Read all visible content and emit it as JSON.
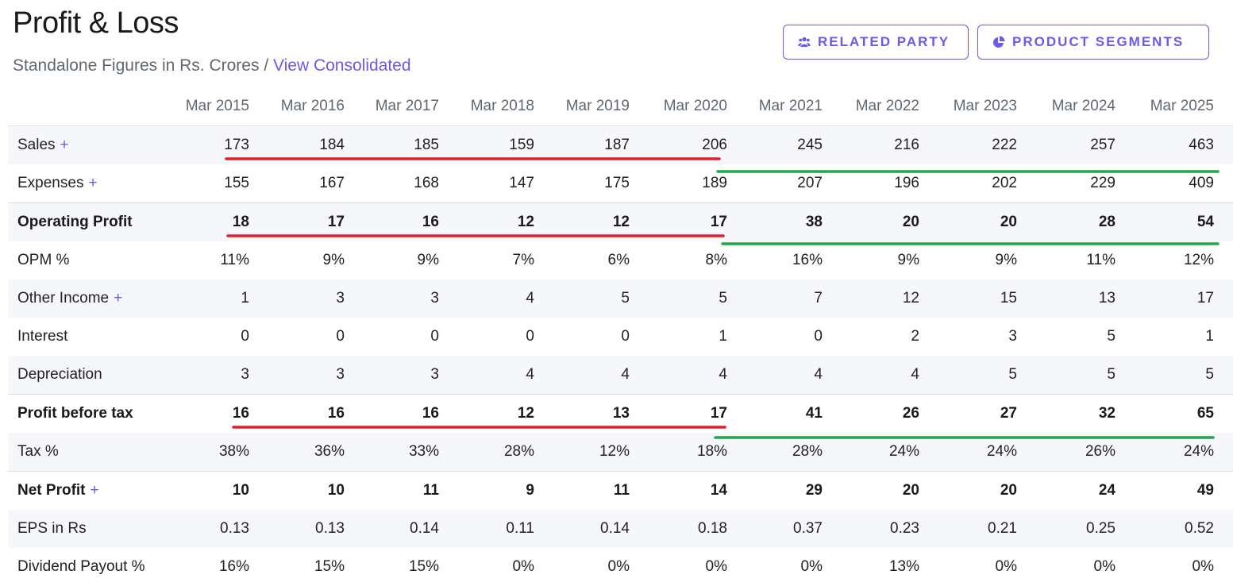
{
  "header": {
    "title": "Profit & Loss",
    "subtitle_prefix": "Standalone Figures in Rs. Crores / ",
    "subtitle_link": "View Consolidated"
  },
  "buttons": {
    "related_party": "RELATED PARTY",
    "product_segments": "PRODUCT SEGMENTS"
  },
  "table": {
    "columns": [
      "Mar 2015",
      "Mar 2016",
      "Mar 2017",
      "Mar 2018",
      "Mar 2019",
      "Mar 2020",
      "Mar 2021",
      "Mar 2022",
      "Mar 2023",
      "Mar 2024",
      "Mar 2025"
    ],
    "rows": [
      {
        "label": "Sales",
        "plus": true,
        "bold": false,
        "values": [
          "173",
          "184",
          "185",
          "159",
          "187",
          "206",
          "245",
          "216",
          "222",
          "257",
          "463"
        ]
      },
      {
        "label": "Expenses",
        "plus": true,
        "bold": false,
        "values": [
          "155",
          "167",
          "168",
          "147",
          "175",
          "189",
          "207",
          "196",
          "202",
          "229",
          "409"
        ]
      },
      {
        "label": "Operating Profit",
        "plus": false,
        "bold": true,
        "values": [
          "18",
          "17",
          "16",
          "12",
          "12",
          "17",
          "38",
          "20",
          "20",
          "28",
          "54"
        ]
      },
      {
        "label": "OPM %",
        "plus": false,
        "bold": false,
        "values": [
          "11%",
          "9%",
          "9%",
          "7%",
          "6%",
          "8%",
          "16%",
          "9%",
          "9%",
          "11%",
          "12%"
        ]
      },
      {
        "label": "Other Income",
        "plus": true,
        "bold": false,
        "values": [
          "1",
          "3",
          "3",
          "4",
          "5",
          "5",
          "7",
          "12",
          "15",
          "13",
          "17"
        ]
      },
      {
        "label": "Interest",
        "plus": false,
        "bold": false,
        "values": [
          "0",
          "0",
          "0",
          "0",
          "0",
          "1",
          "0",
          "2",
          "3",
          "5",
          "1"
        ]
      },
      {
        "label": "Depreciation",
        "plus": false,
        "bold": false,
        "values": [
          "3",
          "3",
          "3",
          "4",
          "4",
          "4",
          "4",
          "4",
          "5",
          "5",
          "5"
        ]
      },
      {
        "label": "Profit before tax",
        "plus": false,
        "bold": true,
        "values": [
          "16",
          "16",
          "16",
          "12",
          "13",
          "17",
          "41",
          "26",
          "27",
          "32",
          "65"
        ]
      },
      {
        "label": "Tax %",
        "plus": false,
        "bold": false,
        "values": [
          "38%",
          "36%",
          "33%",
          "28%",
          "12%",
          "18%",
          "28%",
          "24%",
          "24%",
          "26%",
          "24%"
        ]
      },
      {
        "label": "Net Profit",
        "plus": true,
        "bold": true,
        "values": [
          "10",
          "10",
          "11",
          "9",
          "11",
          "14",
          "29",
          "20",
          "20",
          "24",
          "49"
        ]
      },
      {
        "label": "EPS in Rs",
        "plus": false,
        "bold": false,
        "values": [
          "0.13",
          "0.13",
          "0.14",
          "0.11",
          "0.14",
          "0.18",
          "0.37",
          "0.23",
          "0.21",
          "0.25",
          "0.52"
        ]
      },
      {
        "label": "Dividend Payout %",
        "plus": false,
        "bold": false,
        "values": [
          "16%",
          "15%",
          "15%",
          "0%",
          "0%",
          "0%",
          "0%",
          "13%",
          "0%",
          "0%",
          "0%"
        ]
      }
    ]
  },
  "colors": {
    "accent": "#6a5be8",
    "annotation_red": "#e02030",
    "annotation_green": "#1ea84a"
  }
}
